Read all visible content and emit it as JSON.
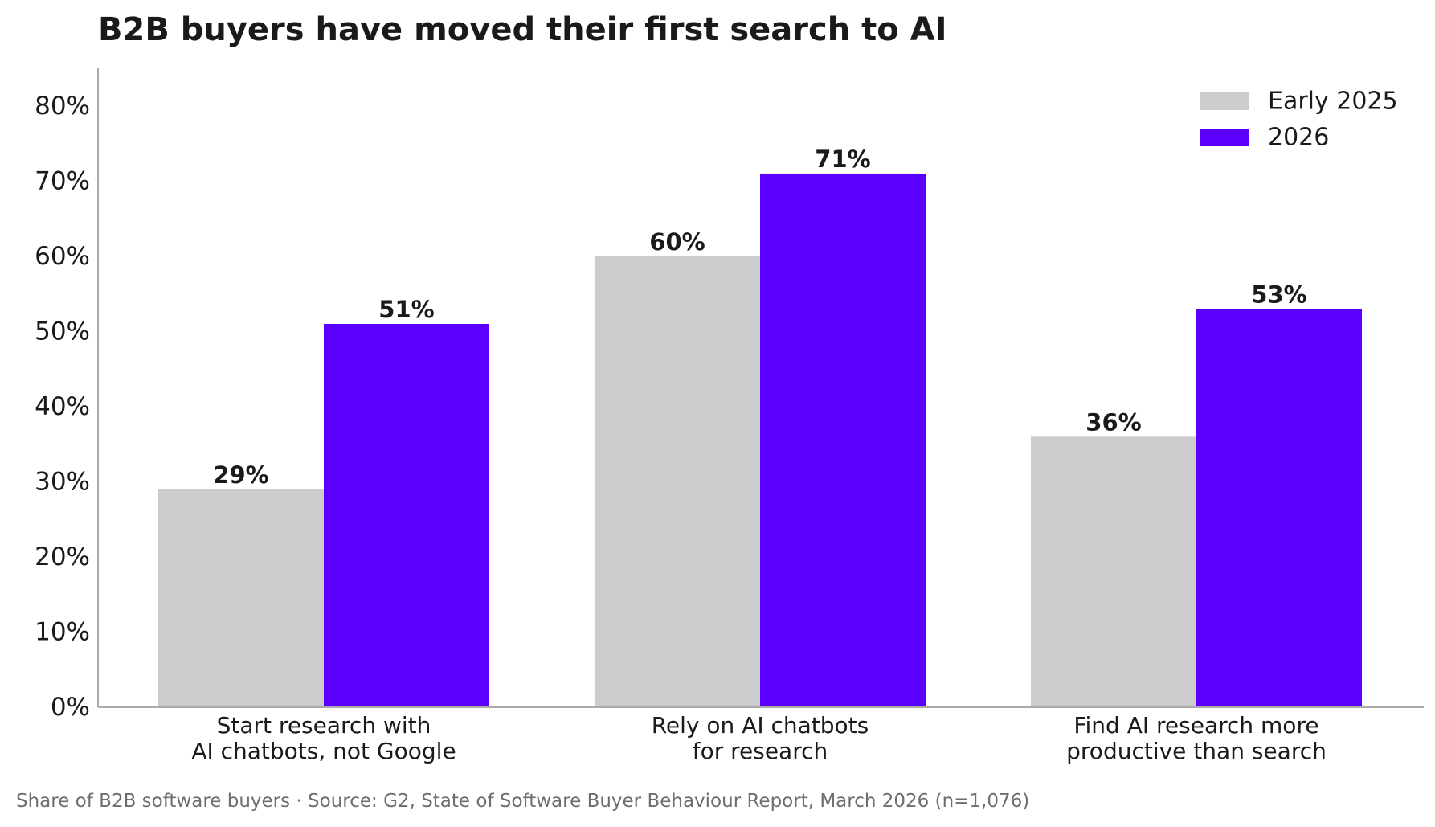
{
  "chart_data": {
    "type": "bar",
    "title": "B2B buyers have moved their first search to AI",
    "xlabel": "",
    "ylabel": "",
    "ylim": [
      0,
      85
    ],
    "yticks": [
      0,
      10,
      20,
      30,
      40,
      50,
      60,
      70,
      80
    ],
    "ytick_format": "{v}%",
    "grid": false,
    "legend_position": "top-right",
    "categories": [
      [
        "Start research with",
        "AI chatbots, not Google"
      ],
      [
        "Rely on AI chatbots",
        "for research"
      ],
      [
        "Find AI research more",
        "productive than search"
      ]
    ],
    "series": [
      {
        "name": "Early 2025",
        "color": "#cccccc",
        "values": [
          29,
          60,
          36
        ]
      },
      {
        "name": "2026",
        "color": "#5b00ff",
        "values": [
          51,
          71,
          53
        ]
      }
    ],
    "data_label_format": "{v}%",
    "footnote": "Share of B2B software buyers  ·  Source: G2, State of Software Buyer Behaviour Report, March 2026 (n=1,076)"
  }
}
